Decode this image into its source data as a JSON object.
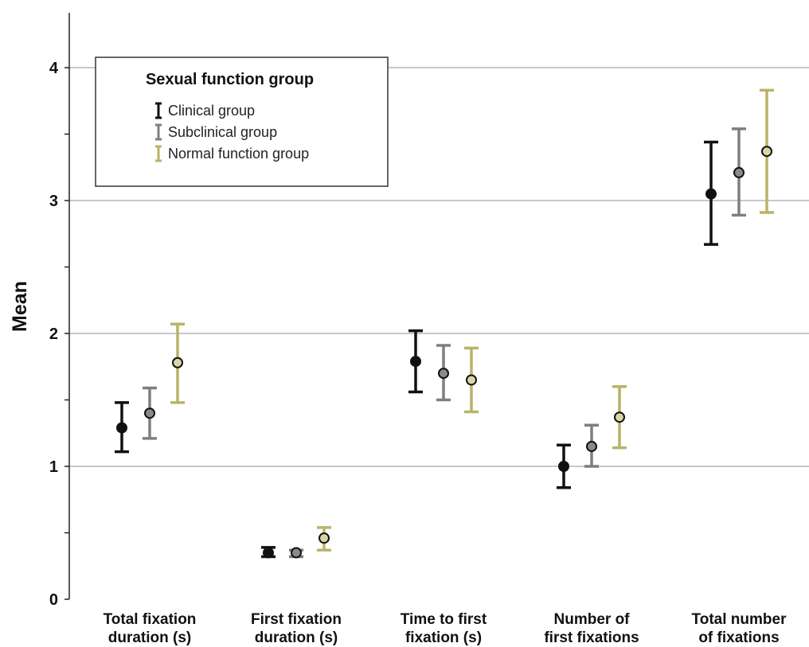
{
  "chart_data": {
    "type": "errorbar",
    "title": "",
    "xlabel": "",
    "ylabel": "Mean",
    "ylim": [
      0,
      4.4
    ],
    "yticks": [
      0,
      1,
      2,
      3,
      4
    ],
    "grid": "horizontal at major ticks",
    "categories": [
      [
        "Total fixation",
        "duration (s)"
      ],
      [
        "First fixation",
        "duration (s)"
      ],
      [
        "Time to first",
        "fixation (s)"
      ],
      [
        "Number of",
        "first fixations"
      ],
      [
        "Total number",
        "of fixations"
      ]
    ],
    "legend": {
      "title": "Sexual function group",
      "placement": "top-left"
    },
    "series": [
      {
        "name": "Clinical group",
        "color": "#111111",
        "marker_fill": "#111111",
        "mean": [
          1.29,
          0.35,
          1.79,
          1.0,
          3.05
        ],
        "lower": [
          1.11,
          0.32,
          1.56,
          0.84,
          2.67
        ],
        "upper": [
          1.48,
          0.39,
          2.02,
          1.16,
          3.44
        ]
      },
      {
        "name": "Subclinical group",
        "color": "#7f7f7f",
        "marker_fill": "#8a8a8a",
        "mean": [
          1.4,
          0.35,
          1.7,
          1.15,
          3.21
        ],
        "lower": [
          1.21,
          0.32,
          1.5,
          1.0,
          2.89
        ],
        "upper": [
          1.59,
          0.37,
          1.91,
          1.31,
          3.54
        ]
      },
      {
        "name": "Normal function group",
        "color": "#b9b36a",
        "marker_fill": "#d9d6a6",
        "mean": [
          1.78,
          0.46,
          1.65,
          1.37,
          3.37
        ],
        "lower": [
          1.48,
          0.37,
          1.41,
          1.14,
          2.91
        ],
        "upper": [
          2.07,
          0.54,
          1.89,
          1.6,
          3.83
        ]
      }
    ]
  }
}
